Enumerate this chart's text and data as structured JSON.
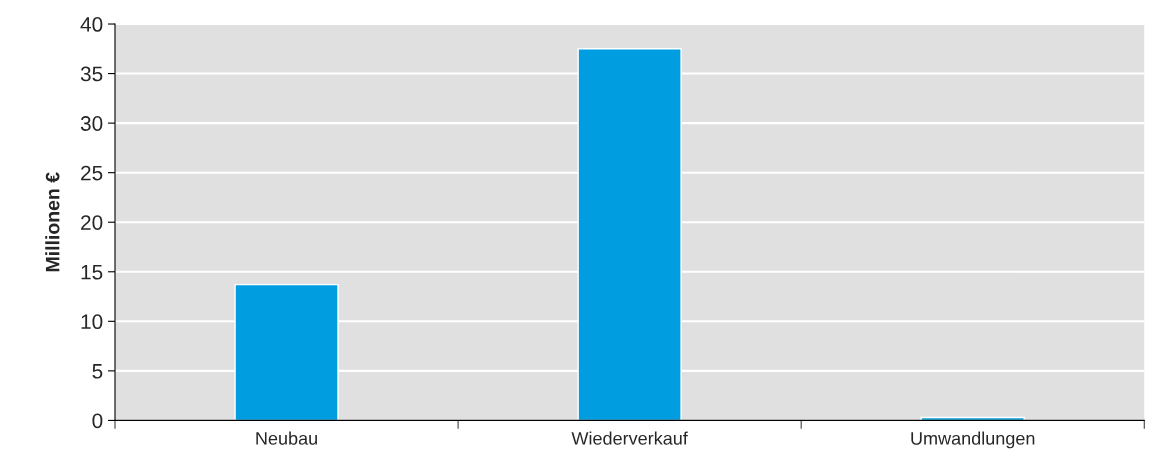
{
  "chart_data": {
    "type": "bar",
    "ylabel": "Millionen €",
    "categories": [
      "Neubau",
      "Wiederverkauf",
      "Umwandlungen"
    ],
    "values": [
      13.7,
      37.5,
      0.3
    ],
    "color": "#009de0",
    "ylim": [
      0,
      40
    ],
    "yticks": [
      0,
      5,
      10,
      15,
      20,
      25,
      30,
      35,
      40
    ],
    "grid": "y"
  }
}
